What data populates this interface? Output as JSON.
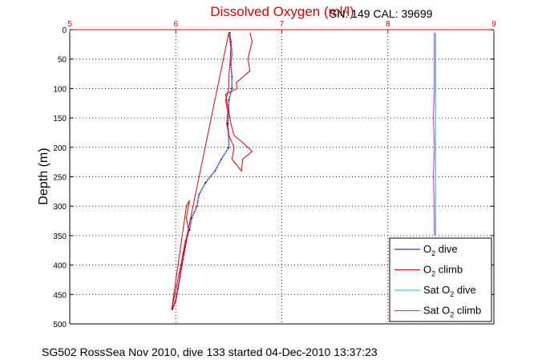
{
  "figure": {
    "title": "Dissolved Oxygen (ml/l)",
    "calibration": "SN: 149  CAL: 39699",
    "footer": "SG502 RossSea Nov 2010, dive 133 started 04-Dec-2010 13:37:23"
  },
  "chart_data": {
    "type": "line",
    "title": "Dissolved Oxygen (ml/l)",
    "xlabel": "",
    "ylabel": "Depth (m)",
    "xlim": [
      5,
      9
    ],
    "ylim": [
      0,
      500
    ],
    "y_reversed": true,
    "x_axis_location": "top",
    "x_ticks": [
      "5",
      "6",
      "7",
      "8",
      "9"
    ],
    "y_ticks": [
      "0",
      "50",
      "100",
      "150",
      "200",
      "250",
      "300",
      "350",
      "400",
      "450",
      "500"
    ],
    "grid": true,
    "legend_position": "bottom-right",
    "series": [
      {
        "name": "O2 dive",
        "legend_main": "O",
        "legend_sub": "2",
        "legend_rest": " dive",
        "color": "#0000cc",
        "style": "dotted-line",
        "points": [
          [
            6.51,
            5
          ],
          [
            6.52,
            20
          ],
          [
            6.53,
            40
          ],
          [
            6.52,
            60
          ],
          [
            6.53,
            80
          ],
          [
            6.53,
            100
          ],
          [
            6.5,
            120
          ],
          [
            6.5,
            140
          ],
          [
            6.49,
            160
          ],
          [
            6.5,
            180
          ],
          [
            6.5,
            200
          ],
          [
            6.43,
            220
          ],
          [
            6.37,
            240
          ],
          [
            6.28,
            260
          ],
          [
            6.22,
            280
          ],
          [
            6.2,
            300
          ],
          [
            6.15,
            320
          ],
          [
            6.13,
            340
          ],
          [
            6.09,
            360
          ],
          [
            6.07,
            380
          ],
          [
            6.05,
            400
          ],
          [
            6.04,
            420
          ],
          [
            6.02,
            440
          ],
          [
            6.0,
            460
          ],
          [
            5.97,
            475
          ]
        ]
      },
      {
        "name": "O2 climb",
        "legend_main": "O",
        "legend_sub": "2",
        "legend_rest": " climb",
        "color": "#e60000",
        "style": "line",
        "points": [
          [
            5.96,
            477
          ],
          [
            6.1,
            300
          ],
          [
            6.13,
            290
          ],
          [
            6.1,
            320
          ],
          [
            6.12,
            340
          ],
          [
            6.1,
            360
          ],
          [
            6.08,
            380
          ],
          [
            6.06,
            400
          ],
          [
            6.04,
            420
          ],
          [
            6.02,
            440
          ],
          [
            6.0,
            460
          ],
          [
            5.96,
            477
          ],
          [
            6.5,
            5
          ],
          [
            6.52,
            30
          ],
          [
            6.51,
            60
          ],
          [
            6.5,
            80
          ],
          [
            6.5,
            100
          ],
          [
            6.47,
            120
          ],
          [
            6.49,
            140
          ],
          [
            6.48,
            160
          ],
          [
            6.5,
            180
          ],
          [
            6.55,
            200
          ],
          [
            6.53,
            220
          ],
          [
            6.62,
            240
          ],
          [
            6.63,
            220
          ],
          [
            6.72,
            207
          ],
          [
            6.62,
            190
          ],
          [
            6.55,
            180
          ],
          [
            6.52,
            160
          ],
          [
            6.5,
            140
          ],
          [
            6.48,
            120
          ],
          [
            6.47,
            110
          ],
          [
            6.58,
            100
          ],
          [
            6.57,
            90
          ],
          [
            6.7,
            70
          ],
          [
            6.68,
            50
          ],
          [
            6.72,
            20
          ],
          [
            6.7,
            5
          ]
        ]
      },
      {
        "name": "Sat O2 dive",
        "legend_main": "Sat O",
        "legend_sub": "2",
        "legend_rest": " dive",
        "color": "#00cccc",
        "style": "line",
        "points": [
          [
            8.45,
            5
          ],
          [
            8.45,
            100
          ],
          [
            8.45,
            200
          ],
          [
            8.45,
            300
          ],
          [
            8.45,
            350
          ]
        ]
      },
      {
        "name": "Sat O2 climb",
        "legend_main": "Sat O",
        "legend_sub": "2",
        "legend_rest": " climb",
        "color": "#ff00ff",
        "style": "line",
        "points": [
          [
            8.44,
            5
          ],
          [
            8.44,
            100
          ],
          [
            8.43,
            150
          ],
          [
            8.44,
            200
          ],
          [
            8.43,
            250
          ],
          [
            8.44,
            320
          ],
          [
            8.44,
            350
          ]
        ]
      }
    ]
  }
}
